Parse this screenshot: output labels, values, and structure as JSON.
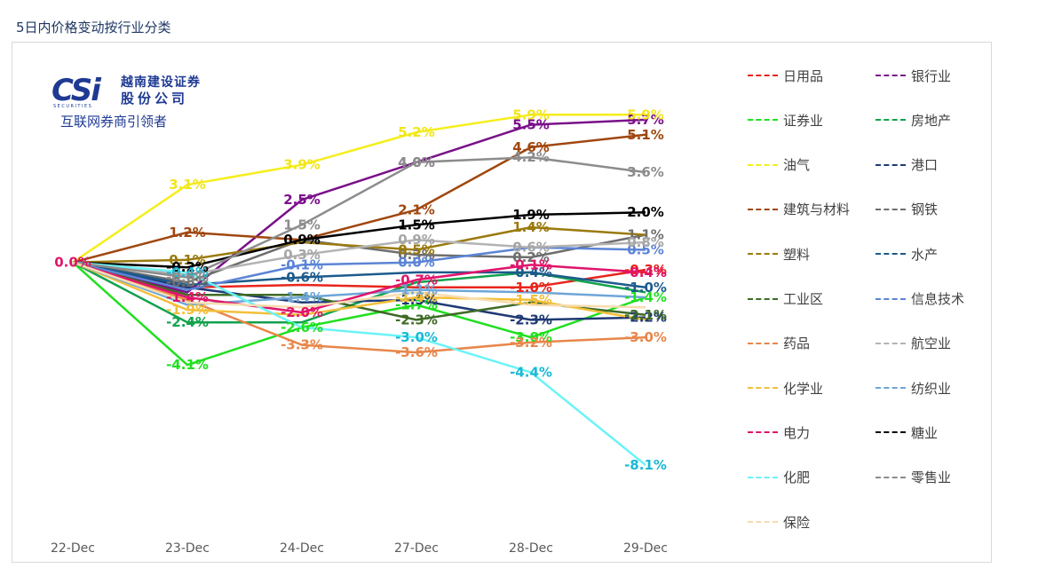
{
  "page": {
    "title": "5日内价格变动按行业分类"
  },
  "logo": {
    "mark": "CSi",
    "sub": "SECURITIES",
    "cn_line1": "越南建设证券",
    "cn_line2": "股份公司",
    "tagline": "互联网券商引领者"
  },
  "chart_data": {
    "type": "line",
    "title": "",
    "xlabel": "",
    "ylabel": "",
    "x": [
      "22-Dec",
      "23-Dec",
      "24-Dec",
      "27-Dec",
      "28-Dec",
      "29-Dec"
    ],
    "ylim": [
      -8.6,
      6.3
    ],
    "grid": false,
    "legend_position": "right",
    "series": [
      {
        "name": "日用品",
        "color": "#e8251c",
        "values": [
          0.0,
          -1.0,
          -0.9,
          -1.0,
          -1.0,
          -0.3
        ],
        "labels": [
          "",
          "",
          "",
          "",
          "-1.0%",
          "-0.3%"
        ]
      },
      {
        "name": "银行业",
        "color": "#7a0f8a",
        "values": [
          0.0,
          -1.2,
          2.5,
          4.0,
          5.5,
          5.7
        ],
        "labels": [
          "",
          "",
          "2.5%",
          "4.0%",
          "5.5%",
          "5.7%"
        ]
      },
      {
        "name": "证券业",
        "color": "#1fe01f",
        "values": [
          0.0,
          -4.1,
          -2.6,
          -1.7,
          -3.0,
          -1.4
        ],
        "labels": [
          "",
          "-4.1%",
          "-2.6%",
          "-1.7%",
          "-3.0%",
          "-1.4%"
        ]
      },
      {
        "name": "房地产",
        "color": "#12a24d",
        "values": [
          0.0,
          -2.4,
          -2.4,
          -0.8,
          -0.4,
          -1.2
        ],
        "labels": [
          "",
          "-2.4%",
          "",
          "",
          "",
          ""
        ]
      },
      {
        "name": "油气",
        "color": "#f5ee1b",
        "values": [
          0.0,
          3.1,
          3.9,
          5.2,
          5.9,
          5.9
        ],
        "labels": [
          "",
          "3.1%",
          "3.9%",
          "5.2%",
          "5.9%",
          "5.9%"
        ]
      },
      {
        "name": "港口",
        "color": "#1f3a74",
        "values": [
          0.0,
          -1.0,
          -1.6,
          -1.5,
          -2.3,
          -2.2
        ],
        "labels": [
          "",
          "",
          "",
          "-1.5%",
          "-2.3%",
          "-2.2%"
        ]
      },
      {
        "name": "建筑与材料",
        "color": "#a0470f",
        "values": [
          0.0,
          1.2,
          0.9,
          2.1,
          4.6,
          5.1
        ],
        "labels": [
          "",
          "1.2%",
          "",
          "2.1%",
          "4.6%",
          "5.1%"
        ]
      },
      {
        "name": "钢铁",
        "color": "#6e6e6e",
        "values": [
          0.0,
          -0.8,
          0.9,
          0.3,
          0.2,
          1.1
        ],
        "labels": [
          "",
          "-0.8%",
          "",
          "0.3%",
          "0.2%",
          "1.1%"
        ]
      },
      {
        "name": "塑料",
        "color": "#9a7a0e",
        "values": [
          0.0,
          0.1,
          0.8,
          0.5,
          1.4,
          1.1
        ],
        "labels": [
          "",
          "0.1%",
          "",
          "0.5%",
          "1.4%",
          ""
        ]
      },
      {
        "name": "水产",
        "color": "#1c5b8c",
        "values": [
          0.0,
          -0.9,
          -0.6,
          -0.4,
          -0.4,
          -1.0
        ],
        "labels": [
          "",
          "",
          "-0.6%",
          "",
          "-0.4%",
          "-1.0%"
        ]
      },
      {
        "name": "工业区",
        "color": "#3e6b26",
        "values": [
          0.0,
          -1.3,
          -1.3,
          -2.3,
          -1.6,
          -2.1
        ],
        "labels": [
          "",
          "",
          "",
          "-2.3%",
          "",
          "-2.1%"
        ]
      },
      {
        "name": "信息技术",
        "color": "#5b84d6",
        "values": [
          0.0,
          -1.1,
          -0.1,
          0.0,
          0.6,
          0.5
        ],
        "labels": [
          "",
          "",
          "-0.1%",
          "0.0%",
          "",
          "0.5%"
        ]
      },
      {
        "name": "药品",
        "color": "#e8864a",
        "values": [
          0.0,
          -1.5,
          -3.3,
          -3.6,
          -3.2,
          -3.0
        ],
        "labels": [
          "",
          "",
          "-3.3%",
          "-3.6%",
          "-3.2%",
          "-3.0%"
        ]
      },
      {
        "name": "航空业",
        "color": "#b3b3b3",
        "values": [
          0.0,
          -0.5,
          0.3,
          0.9,
          0.6,
          0.8
        ],
        "labels": [
          "",
          "",
          "0.3%",
          "0.9%",
          "0.6%",
          "0.8%"
        ]
      },
      {
        "name": "化学业",
        "color": "#f2bf3a",
        "values": [
          0.0,
          -1.9,
          -2.1,
          -1.4,
          -1.5,
          -2.3
        ],
        "labels": [
          "",
          "-1.9%",
          "",
          "-1.4%",
          "-1.5%",
          ""
        ]
      },
      {
        "name": "纺织业",
        "color": "#6ea6d8",
        "values": [
          0.0,
          -1.7,
          -1.4,
          -1.1,
          -1.2,
          -1.4
        ],
        "labels": [
          "",
          "",
          "-1.4%",
          "-1.1%",
          "",
          ""
        ]
      },
      {
        "name": "电力",
        "color": "#e0156b",
        "values": [
          0.0,
          -1.4,
          -2.0,
          -0.7,
          -0.1,
          -0.4
        ],
        "labels": [
          "0.0%",
          "-1.4%",
          "-2.0%",
          "-0.7%",
          "-0.1%",
          "-0.4%"
        ]
      },
      {
        "name": "糖业",
        "color": "#000000",
        "values": [
          0.0,
          -0.2,
          0.9,
          1.5,
          1.9,
          2.0
        ],
        "labels": [
          "",
          "-0.2%",
          "0.9%",
          "1.5%",
          "1.9%",
          "2.0%"
        ]
      },
      {
        "name": "化肥",
        "color": "#6cf3f7",
        "values": [
          0.0,
          -0.4,
          -2.6,
          -3.0,
          -4.4,
          -8.1
        ],
        "labels": [
          "",
          "-0.4%",
          "",
          "-3.0%",
          "-4.4%",
          "-8.1%"
        ]
      },
      {
        "name": "零售业",
        "color": "#8c8c8c",
        "values": [
          0.0,
          -0.6,
          1.5,
          4.0,
          4.2,
          3.6
        ],
        "labels": [
          "",
          "-0.6%",
          "1.5%",
          "4.0%",
          "4.2%",
          "3.6%"
        ]
      },
      {
        "name": "保险",
        "color": "#f7dcae",
        "values": [
          0.0,
          -1.6,
          -1.8,
          -1.2,
          -1.7,
          -1.8
        ],
        "labels": [
          "",
          "",
          "",
          "",
          "",
          ""
        ]
      }
    ]
  }
}
